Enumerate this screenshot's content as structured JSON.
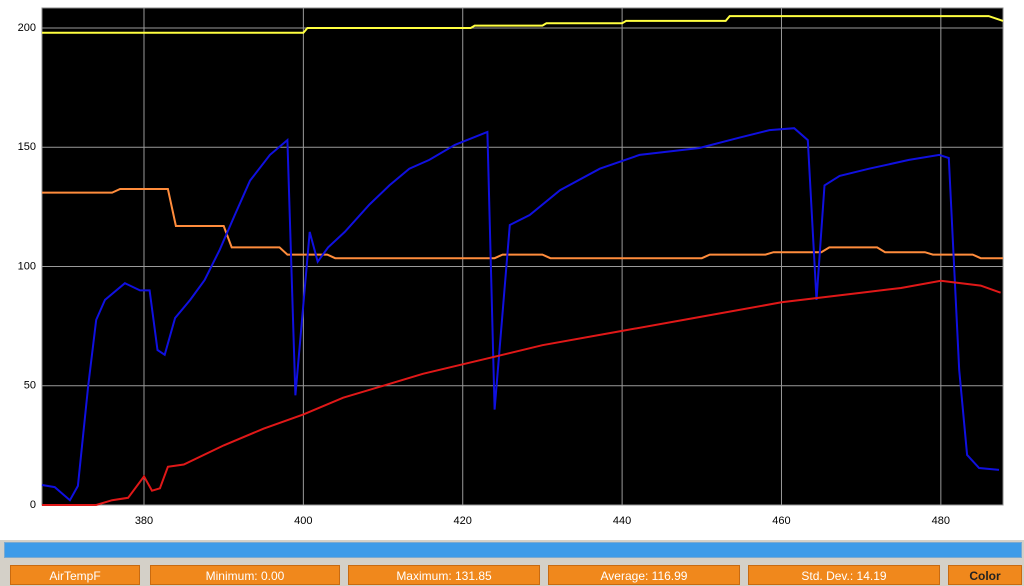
{
  "chart_data": {
    "type": "line",
    "xlim": [
      367.2,
      487.8
    ],
    "ylim": [
      0,
      208.4
    ],
    "xticks": [
      380,
      400,
      420,
      440,
      460,
      480
    ],
    "yticks": [
      0,
      50,
      100,
      150,
      200
    ],
    "grid": true,
    "series": [
      {
        "color": "#ffff40",
        "x": [
          367.2,
          400,
          400.5,
          421,
          421.5,
          430,
          430.5,
          440,
          440.5,
          453,
          453.5,
          486,
          487.8
        ],
        "values": [
          198,
          198,
          200,
          200,
          201,
          201,
          202,
          202,
          203,
          203,
          205,
          205,
          203
        ]
      },
      {
        "color": "#ff8c3c",
        "x": [
          367.2,
          376,
          377,
          383,
          384,
          390,
          391,
          397,
          398,
          403,
          404,
          424,
          425,
          430,
          431,
          450,
          451,
          458,
          459,
          465,
          466,
          472,
          473,
          478,
          479,
          484,
          485,
          487.8
        ],
        "values": [
          131,
          131,
          132.5,
          132.5,
          117,
          117,
          108,
          108,
          105,
          105,
          103.5,
          103.5,
          105,
          105,
          103.5,
          103.5,
          105,
          105,
          106,
          106,
          108,
          108,
          106,
          106,
          105,
          105,
          103.5,
          103.5
        ]
      },
      {
        "color": "#1010e0",
        "x": [
          367.2,
          368.8,
          370.7,
          371.7,
          373,
          374,
          375.1,
          377.6,
          379.5,
          380.7,
          381.7,
          382.6,
          383.9,
          385.8,
          387.6,
          389.5,
          391.4,
          393.3,
          395.8,
          398,
          399,
          400.8,
          401.8,
          403.1,
          405.2,
          408.3,
          410.8,
          413.3,
          415.8,
          419,
          423.1,
          424,
          425.9,
          428.4,
          432.2,
          437.2,
          442.2,
          449.7,
          454.7,
          458.5,
          461.6,
          463.3,
          464.4,
          465.4,
          467.3,
          471,
          476,
          479.8,
          481,
          482.3,
          483.3,
          484.8,
          487.3
        ],
        "values": [
          8.4,
          7.5,
          2,
          8,
          50,
          77.6,
          86,
          93,
          90,
          90,
          65,
          63,
          78.4,
          86,
          94.3,
          107,
          121.6,
          136,
          146.8,
          153,
          46,
          114.5,
          102,
          108,
          114.5,
          126,
          134,
          141,
          144.7,
          151,
          156.4,
          40,
          117.4,
          121.6,
          132,
          141,
          146.8,
          149.7,
          154,
          157.2,
          158,
          153,
          86,
          134,
          138,
          141,
          144.7,
          146.8,
          145.5,
          56.6,
          21,
          15.5,
          14.7
        ]
      },
      {
        "color": "#e01818",
        "x": [
          367.2,
          374,
          376,
          378,
          380,
          381,
          382,
          383,
          385,
          390,
          395,
          400,
          405,
          410,
          415,
          420,
          425,
          430,
          440,
          450,
          460,
          470,
          475,
          480,
          485,
          487.5
        ],
        "values": [
          0,
          0,
          2,
          3,
          12,
          6,
          7,
          16,
          17,
          25,
          32,
          38,
          45,
          50,
          55,
          59,
          63,
          67,
          73,
          79,
          85,
          89,
          91,
          94,
          92,
          89
        ]
      }
    ]
  },
  "status_bar": {
    "buttons": [
      "AirTempF",
      "Minimum: 0.00",
      "Maximum: 131.85",
      "Average: 116.99",
      "Std. Dev.: 14.19",
      "Color"
    ]
  }
}
